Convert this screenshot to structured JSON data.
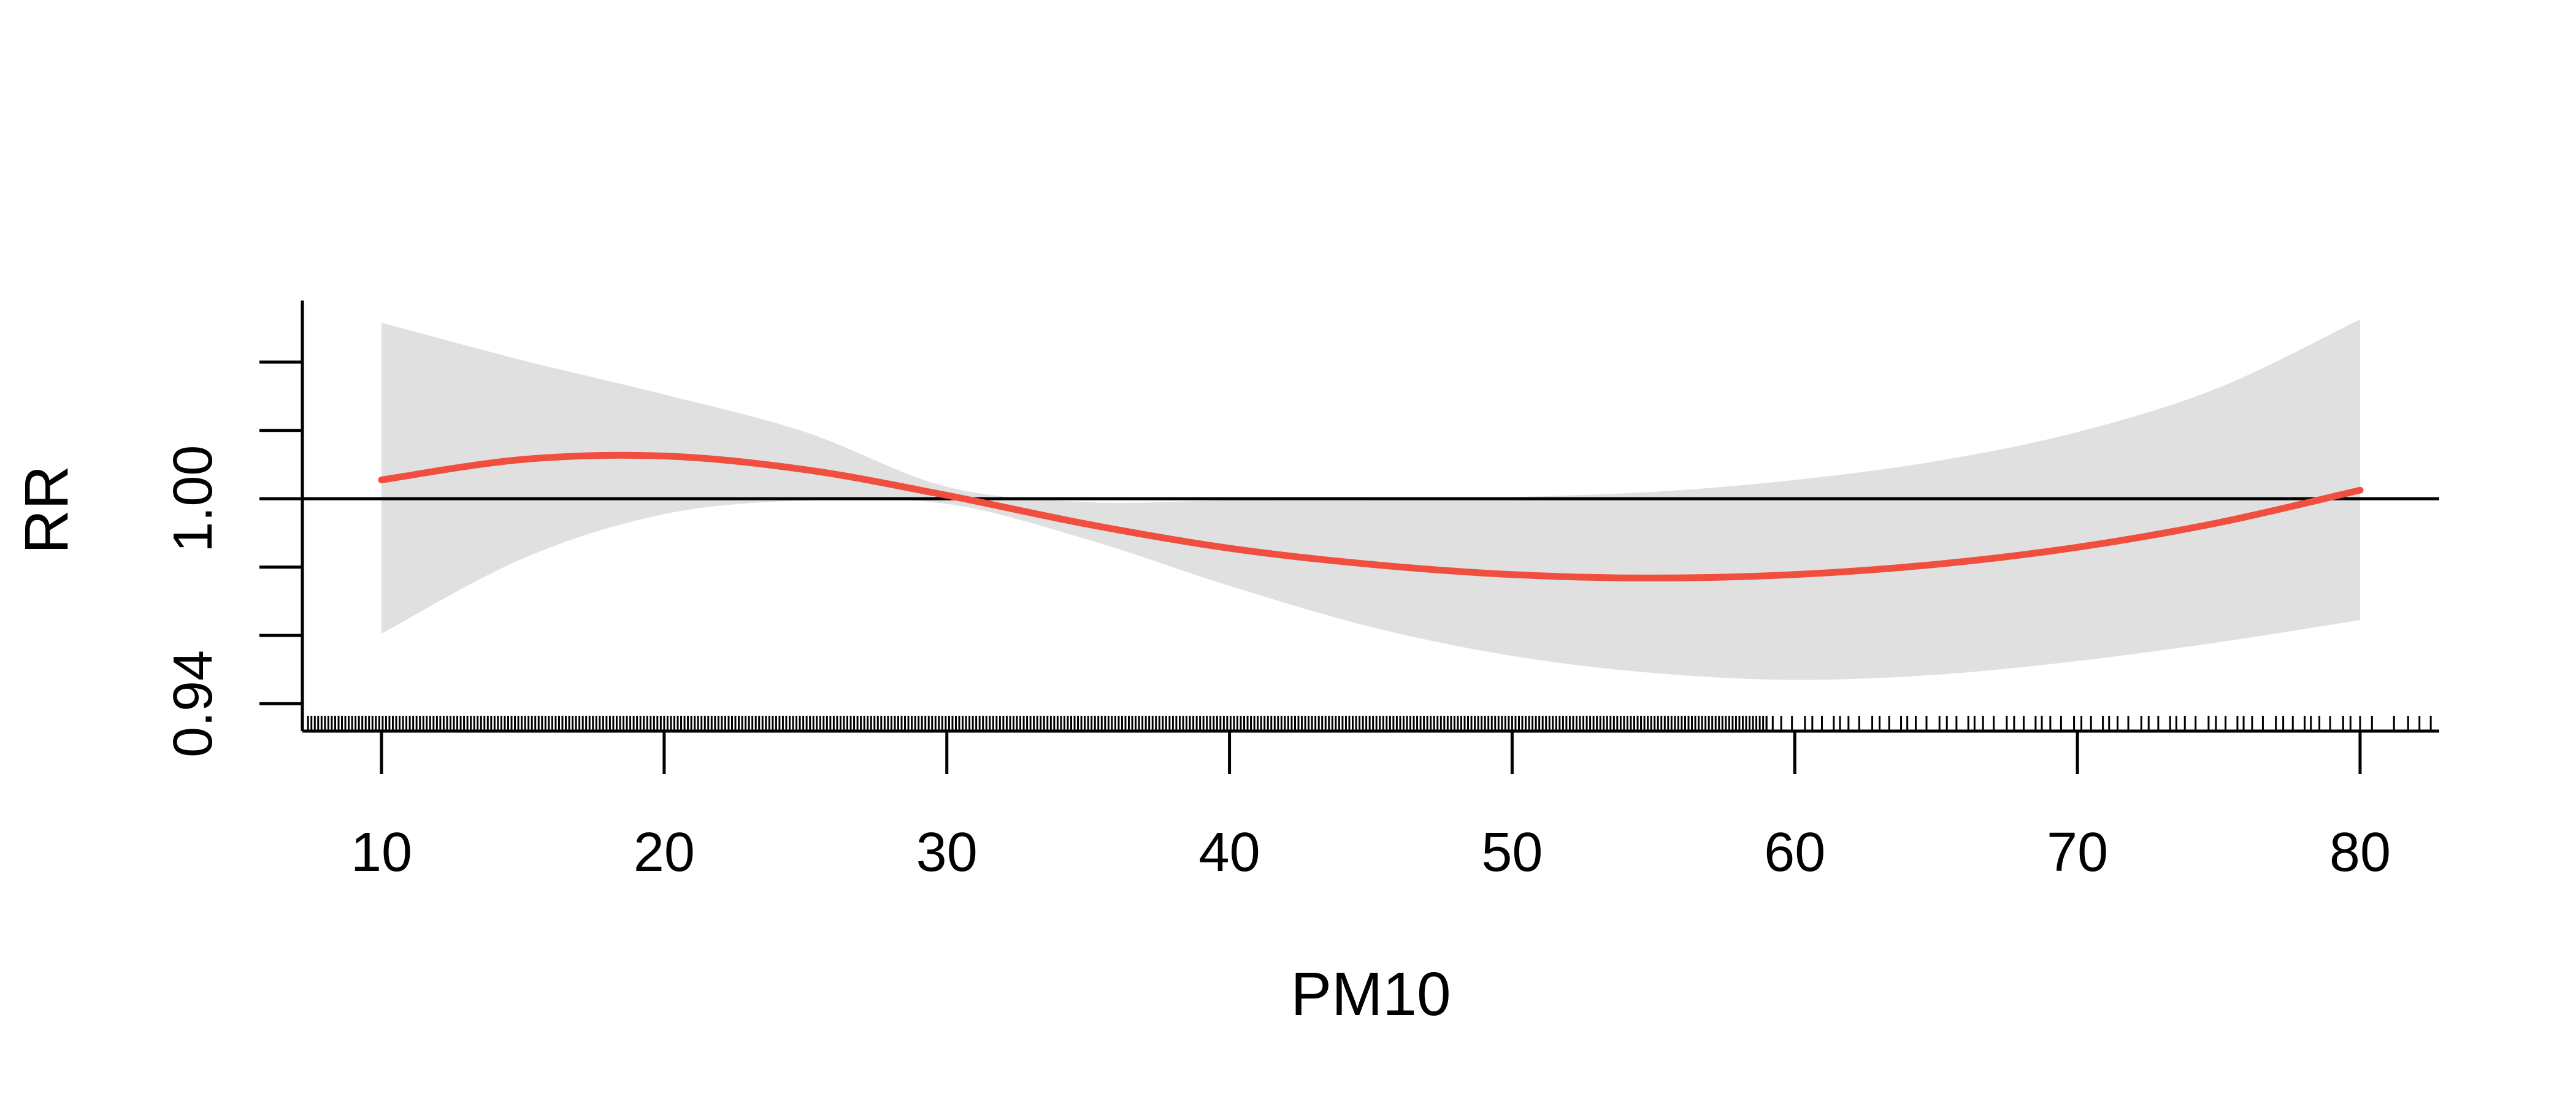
{
  "chart_data": {
    "type": "line",
    "title": "",
    "xlabel": "PM10",
    "ylabel": "RR",
    "xlim": [
      7.2,
      82.8
    ],
    "ylim": [
      0.932,
      1.058
    ],
    "x_ticks": [
      10,
      20,
      30,
      40,
      50,
      60,
      70,
      80
    ],
    "x_tick_labels": [
      "10",
      "20",
      "30",
      "40",
      "50",
      "60",
      "70",
      "80"
    ],
    "y_ticks": [
      0.94,
      0.96,
      0.98,
      1.0,
      1.02,
      1.04
    ],
    "y_tick_labels": [
      "0.94",
      "",
      "",
      "1.00",
      "",
      ""
    ],
    "reference_line": 1.0,
    "grid": false,
    "colors": {
      "estimate": "#f04e3e",
      "confidence_band": "#e0e0e0",
      "axes": "#000000"
    },
    "series": [
      {
        "role": "estimate",
        "x": [
          10,
          15,
          20,
          25,
          30,
          35,
          40,
          45,
          50,
          55,
          60,
          65,
          70,
          75,
          80
        ],
        "y": [
          1.0055,
          1.0115,
          1.0125,
          1.0085,
          1.001,
          0.9925,
          0.9855,
          0.9808,
          0.9778,
          0.9768,
          0.9778,
          0.9808,
          0.9858,
          0.993,
          1.0025
        ]
      },
      {
        "role": "lower_bound",
        "x": [
          10,
          15,
          20,
          25,
          30,
          35,
          40,
          45,
          50,
          55,
          60,
          65,
          70,
          75,
          80
        ],
        "y": [
          0.9605,
          0.9825,
          0.9955,
          0.9995,
          0.9985,
          0.988,
          0.9745,
          0.9625,
          0.954,
          0.949,
          0.947,
          0.9485,
          0.9525,
          0.958,
          0.9645
        ]
      },
      {
        "role": "upper_bound",
        "x": [
          10,
          15,
          20,
          25,
          30,
          35,
          40,
          45,
          50,
          55,
          60,
          65,
          70,
          75,
          80
        ],
        "y": [
          1.0515,
          1.0405,
          1.0305,
          1.0195,
          1.0035,
          0.999,
          0.9995,
          0.9995,
          1.0005,
          1.002,
          1.0055,
          1.011,
          1.0195,
          1.0325,
          1.0525
        ]
      }
    ],
    "rug": {
      "dense_until": 59,
      "sparse_until": 80.5,
      "tail": [
        81.2,
        81.7,
        82.1,
        82.5
      ]
    }
  }
}
